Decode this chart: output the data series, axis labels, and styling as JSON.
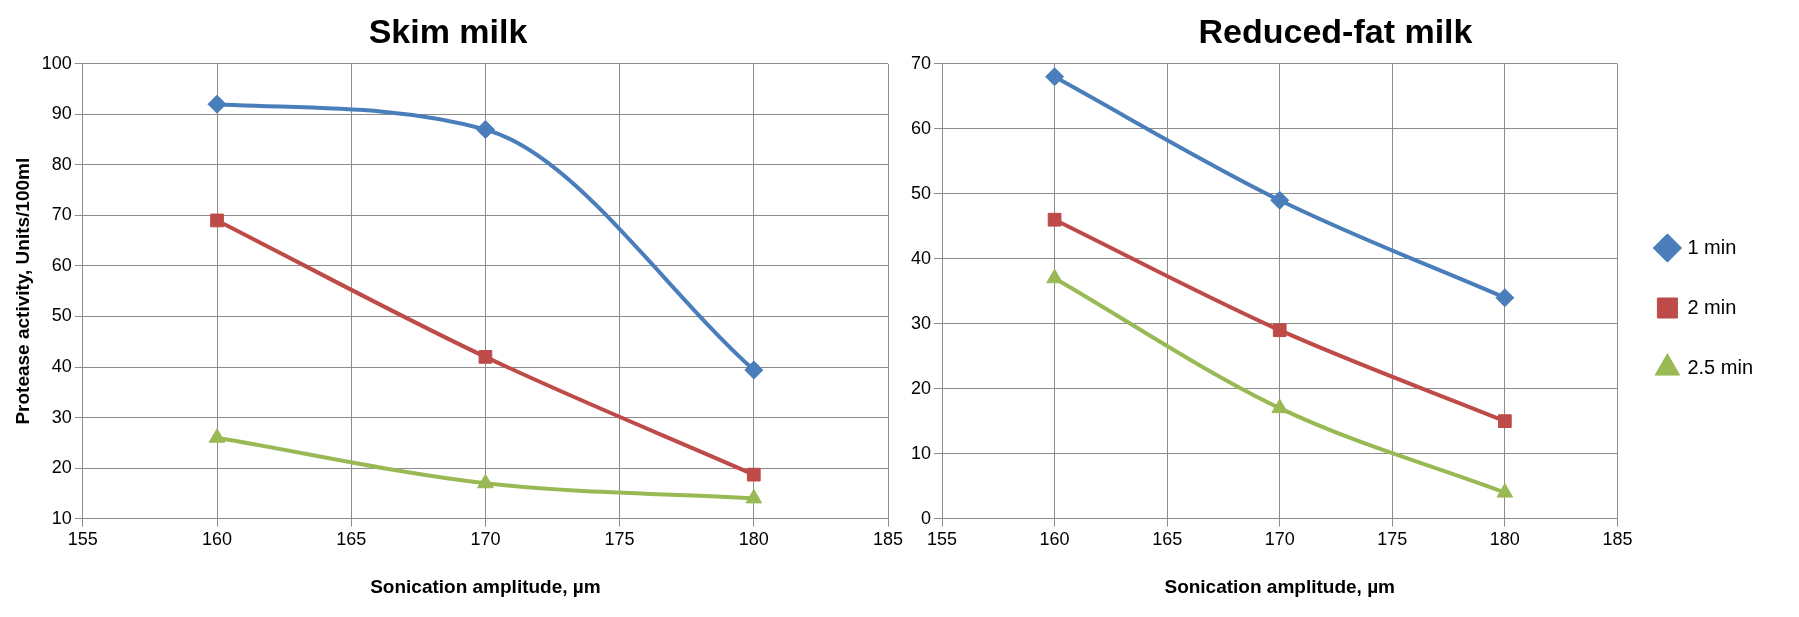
{
  "chart_data": [
    {
      "type": "line",
      "title": "Skim milk",
      "xlabel": "Sonication amplitude, µm",
      "ylabel": "Protease activity, Units/100ml",
      "x": [
        160,
        170,
        180
      ],
      "xlim": [
        155,
        185
      ],
      "xticks": [
        155,
        160,
        165,
        170,
        175,
        180,
        185
      ],
      "ylim": [
        10,
        100
      ],
      "yticks": [
        10,
        20,
        30,
        40,
        50,
        60,
        70,
        80,
        90,
        100
      ],
      "grid": true,
      "legend": false,
      "series": [
        {
          "color": "#4a7ebb",
          "marker": "diamond",
          "values": [
            92,
            87,
            39.4
          ]
        },
        {
          "color": "#be4b48",
          "marker": "square",
          "values": [
            69,
            42,
            18.7
          ]
        },
        {
          "color": "#98b954",
          "marker": "triangle",
          "values": [
            26,
            17,
            14
          ]
        }
      ]
    },
    {
      "type": "line",
      "title": "Reduced-fat milk",
      "xlabel": "Sonication amplitude, µm",
      "x": [
        160,
        170,
        180
      ],
      "xlim": [
        155,
        185
      ],
      "xticks": [
        155,
        160,
        165,
        170,
        175,
        180,
        185
      ],
      "ylim": [
        0,
        70
      ],
      "yticks": [
        0,
        10,
        20,
        30,
        40,
        50,
        60,
        70
      ],
      "grid": true,
      "legend": "right",
      "series": [
        {
          "name": "1 min",
          "color": "#4a7ebb",
          "marker": "diamond",
          "values": [
            68,
            49,
            34
          ]
        },
        {
          "name": "2 min",
          "color": "#be4b48",
          "marker": "square",
          "values": [
            46,
            29,
            15
          ]
        },
        {
          "name": "2.5 min",
          "color": "#98b954",
          "marker": "triangle",
          "values": [
            37,
            17,
            4
          ]
        }
      ]
    }
  ]
}
